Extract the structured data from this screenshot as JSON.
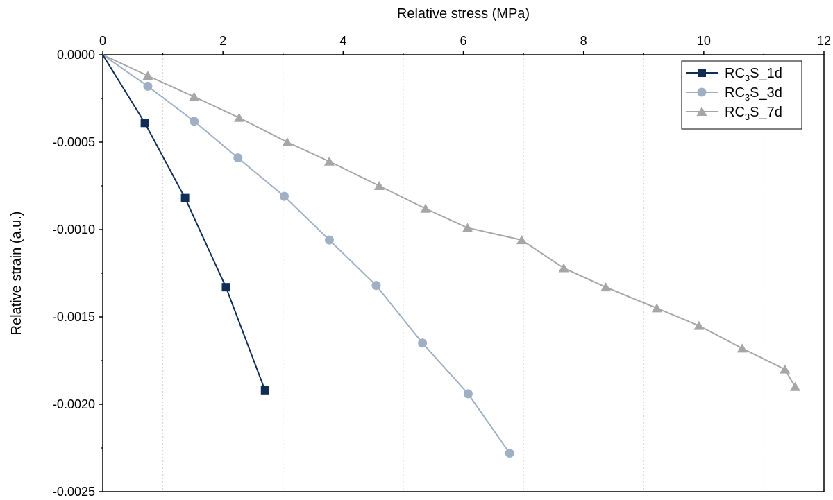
{
  "chart_data": {
    "type": "line",
    "xlabel": "Relative stress (MPa)",
    "ylabel": "Relative strain (a.u.)",
    "xlim": [
      0,
      12
    ],
    "ylim": [
      -0.0025,
      0
    ],
    "x_ticks": [
      0,
      2,
      4,
      6,
      8,
      10,
      12
    ],
    "x_tick_labels": [
      "0",
      "2",
      "4",
      "6",
      "8",
      "10",
      "12"
    ],
    "y_ticks": [
      0,
      -0.0005,
      -0.001,
      -0.0015,
      -0.002,
      -0.0025
    ],
    "y_tick_labels": [
      "0.0000",
      "-0.0005",
      "-0.0010",
      "-0.0015",
      "-0.0020",
      "-0.0025"
    ],
    "x_axis_position": "top",
    "grid": "vertical dotted",
    "legend_position": "top-right",
    "series": [
      {
        "name": "RC3S_1d",
        "legend_parts": [
          "RC",
          "3",
          "S_1d"
        ],
        "color": "#0f2d55",
        "marker": "square",
        "x": [
          0,
          0.7,
          1.37,
          2.05,
          2.7
        ],
        "y": [
          0,
          -0.00039,
          -0.00082,
          -0.00133,
          -0.00192
        ]
      },
      {
        "name": "RC3S_3d",
        "legend_parts": [
          "RC",
          "3",
          "S_3d"
        ],
        "color": "#9fb0c4",
        "marker": "circle",
        "x": [
          0,
          0.75,
          1.52,
          2.25,
          3.02,
          3.77,
          4.55,
          5.32,
          6.08,
          6.77
        ],
        "y": [
          0,
          -0.00018,
          -0.00038,
          -0.00059,
          -0.00081,
          -0.00106,
          -0.00132,
          -0.00165,
          -0.00194,
          -0.00228
        ]
      },
      {
        "name": "RC3S_7d",
        "legend_parts": [
          "RC",
          "3",
          "S_7d"
        ],
        "color": "#a6a6a6",
        "marker": "triangle",
        "x": [
          0,
          0.75,
          1.52,
          2.27,
          3.07,
          3.77,
          4.6,
          5.37,
          6.07,
          6.97,
          7.67,
          8.37,
          9.22,
          9.92,
          10.64,
          11.35,
          11.52
        ],
        "y": [
          0,
          -0.00012,
          -0.00024,
          -0.00036,
          -0.0005,
          -0.00061,
          -0.00075,
          -0.00088,
          -0.00099,
          -0.00106,
          -0.00122,
          -0.00133,
          -0.00145,
          -0.00155,
          -0.00168,
          -0.0018,
          -0.0019
        ]
      }
    ]
  }
}
